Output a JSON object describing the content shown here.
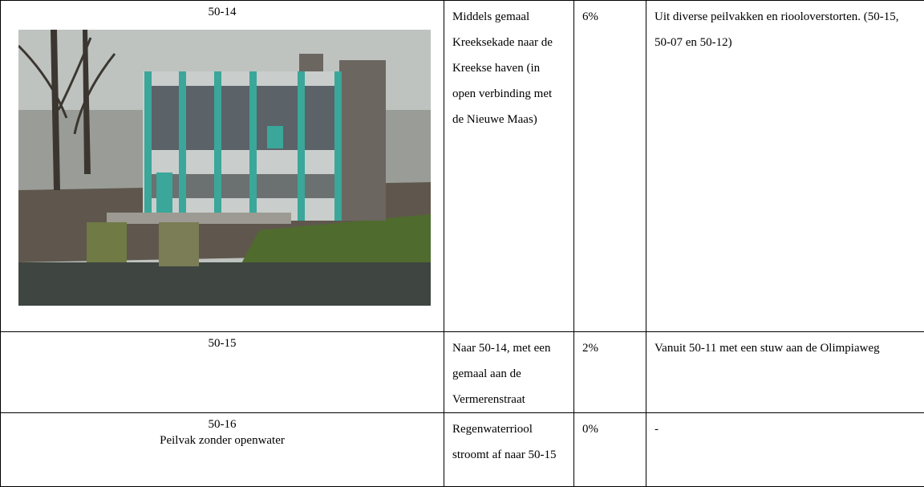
{
  "table": {
    "rows": [
      [
        [
          "50-14"
        ],
        "Middels gemaal Kreeksekade naar de Kreekse haven (in open verbinding met de Nieuwe Maas)",
        "6%",
        "Uit diverse peilvakken en riooloverstorten. (50-15, 50-07 en 50-12)"
      ],
      [
        [
          "50-15"
        ],
        "Naar 50-14, met een gemaal aan de Vermerenstraat",
        "2%",
        "Vanuit 50-11 met een stuw aan de Olimpiaweg"
      ],
      [
        [
          "50-16",
          "Peilvak zonder openwater"
        ],
        "Regenwaterriool stroomt af naar 50-15",
        "0%",
        "-"
      ]
    ]
  }
}
